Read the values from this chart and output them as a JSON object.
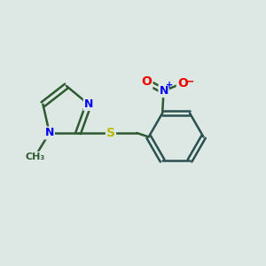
{
  "background_color": "#dde8e4",
  "bond_color": "#2d5a30",
  "bond_width": 1.8,
  "bond_color_benz": "#2a5050",
  "atom_colors": {
    "N": "#0000ee",
    "S": "#bbbb00",
    "O": "#ee0000",
    "C": "#2d5a30"
  },
  "font_size": 9,
  "N_fontsize": 9,
  "S_fontsize": 10,
  "O_fontsize": 10,
  "methyl_fontsize": 8
}
